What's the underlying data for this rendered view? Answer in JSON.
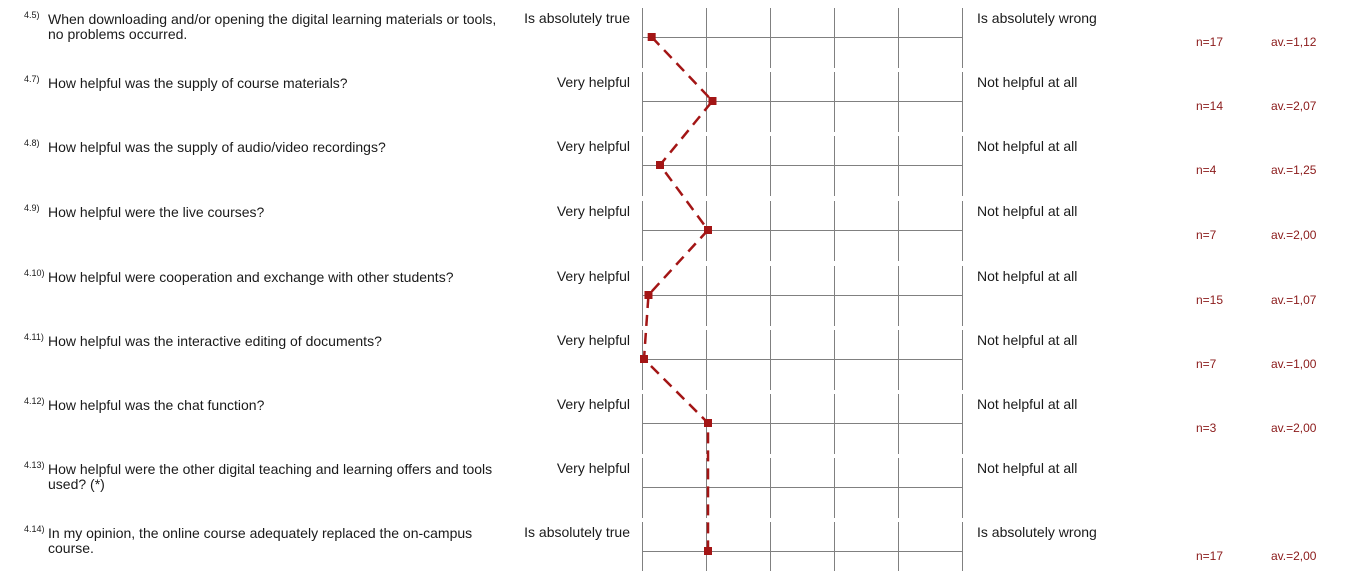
{
  "chart_data": {
    "type": "line",
    "scale_points": 5,
    "colors": {
      "profile": "#a31515",
      "grid": "#808080",
      "stats": "#8b1a1a"
    },
    "line_style": "dashed",
    "items": [
      {
        "num": "4.5)",
        "question": "When downloading and/or opening the digital learning materials or tools, no problems occurred.",
        "left": "Is absolutely true",
        "right": "Is absolutely wrong",
        "n": "n=17",
        "av": "av.=1,12",
        "value": 1.12
      },
      {
        "num": "4.7)",
        "question": "How helpful was the supply of course materials?",
        "left": "Very helpful",
        "right": "Not helpful at all",
        "n": "n=14",
        "av": "av.=2,07",
        "value": 2.07
      },
      {
        "num": "4.8)",
        "question": "How helpful was the supply of audio/video recordings?",
        "left": "Very helpful",
        "right": "Not helpful at all",
        "n": "n=4",
        "av": "av.=1,25",
        "value": 1.25
      },
      {
        "num": "4.9)",
        "question": "How helpful were the live courses?",
        "left": "Very helpful",
        "right": "Not helpful at all",
        "n": "n=7",
        "av": "av.=2,00",
        "value": 2.0
      },
      {
        "num": "4.10)",
        "question": "How helpful were cooperation and exchange with other students?",
        "left": "Very helpful",
        "right": "Not helpful at all",
        "n": "n=15",
        "av": "av.=1,07",
        "value": 1.07
      },
      {
        "num": "4.11)",
        "question": "How helpful was the interactive editing of documents?",
        "left": "Very helpful",
        "right": "Not helpful at all",
        "n": "n=7",
        "av": "av.=1,00",
        "value": 1.0
      },
      {
        "num": "4.12)",
        "question": "How helpful was the chat function?",
        "left": "Very helpful",
        "right": "Not helpful at all",
        "n": "n=3",
        "av": "av.=2,00",
        "value": 2.0
      },
      {
        "num": "4.13)",
        "question": "How helpful were the other digital teaching and learning offers and tools used? (*)",
        "left": "Very helpful",
        "right": "Not helpful at all",
        "n": "",
        "av": "",
        "value": null
      },
      {
        "num": "4.14)",
        "question": "In my opinion, the online course adequately replaced the on-campus course.",
        "left": "Is absolutely true",
        "right": "Is absolutely wrong",
        "n": "n=17",
        "av": "av.=2,00",
        "value": 2.0
      }
    ]
  }
}
